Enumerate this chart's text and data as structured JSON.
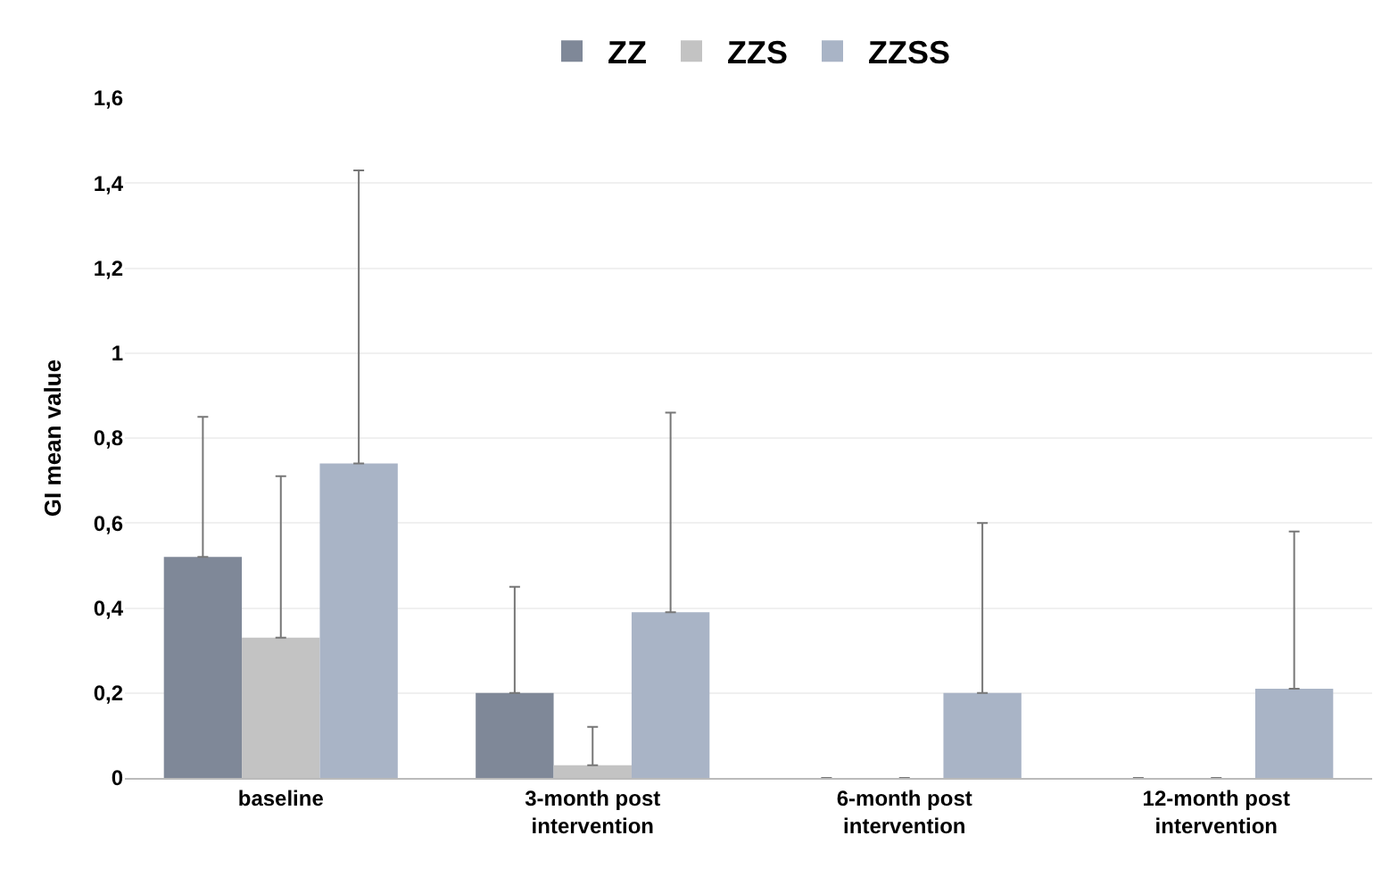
{
  "chart_data": {
    "type": "bar",
    "ylabel": "GI mean value",
    "categories": [
      "baseline",
      "3-month post intervention",
      "6-month post intervention",
      "12-month post intervention"
    ],
    "series": [
      {
        "name": "ZZ",
        "color": "#7f8898",
        "values": [
          0.52,
          0.2,
          0,
          0
        ],
        "errors": [
          [
            0.52,
            0.85
          ],
          [
            0.2,
            0.45
          ],
          null,
          null
        ]
      },
      {
        "name": "ZZS",
        "color": "#c3c3c3",
        "values": [
          0.33,
          0.03,
          0,
          0
        ],
        "errors": [
          [
            0.33,
            0.71
          ],
          [
            0.03,
            0.12
          ],
          null,
          null
        ]
      },
      {
        "name": "ZZSS",
        "color": "#a9b4c6",
        "values": [
          0.74,
          0.39,
          0.2,
          0.21
        ],
        "errors": [
          [
            0.74,
            1.43
          ],
          [
            0.39,
            0.86
          ],
          [
            0.2,
            0.6
          ],
          [
            0.21,
            0.58
          ]
        ]
      }
    ],
    "ylim": [
      0,
      1.6
    ],
    "yticks": [
      0,
      {
        "value": 0.2,
        "label": "0,2"
      },
      {
        "value": 0.4,
        "label": "0,4"
      },
      {
        "value": 0.6,
        "label": "0,6"
      },
      {
        "value": 0.8,
        "label": "0,8"
      },
      1,
      {
        "value": 1.2,
        "label": "1,2"
      },
      {
        "value": 1.4,
        "label": "1,4"
      },
      {
        "value": 1.6,
        "label": "1,6"
      }
    ],
    "grid": "y",
    "legend": "top"
  }
}
